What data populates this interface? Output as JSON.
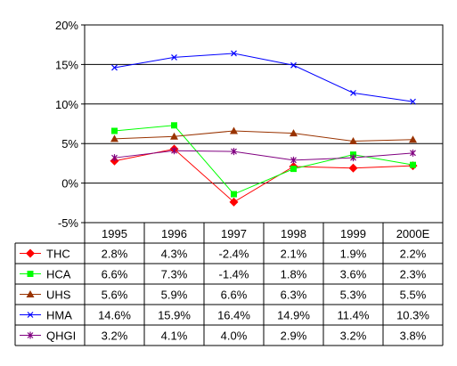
{
  "chart_data": {
    "type": "line",
    "categories": [
      "1995",
      "1996",
      "1997",
      "1998",
      "1999",
      "2000E"
    ],
    "ylim": [
      -5,
      20
    ],
    "yticks": [
      -5,
      0,
      5,
      10,
      15,
      20
    ],
    "ytick_labels": [
      "-5%",
      "0%",
      "5%",
      "10%",
      "15%",
      "20%"
    ],
    "grid": true,
    "legend": "data-table-below",
    "series": [
      {
        "name": "THC",
        "color": "#ff0000",
        "marker": "diamond",
        "values": [
          2.8,
          4.3,
          -2.4,
          2.1,
          1.9,
          2.2
        ],
        "labels": [
          "2.8%",
          "4.3%",
          "-2.4%",
          "2.1%",
          "1.9%",
          "2.2%"
        ]
      },
      {
        "name": "HCA",
        "color": "#00ff00",
        "marker": "square",
        "values": [
          6.6,
          7.3,
          -1.4,
          1.8,
          3.6,
          2.3
        ],
        "labels": [
          "6.6%",
          "7.3%",
          "-1.4%",
          "1.8%",
          "3.6%",
          "2.3%"
        ]
      },
      {
        "name": "UHS",
        "color": "#993300",
        "marker": "triangle",
        "values": [
          5.6,
          5.9,
          6.6,
          6.3,
          5.3,
          5.5
        ],
        "labels": [
          "5.6%",
          "5.9%",
          "6.6%",
          "6.3%",
          "5.3%",
          "5.5%"
        ]
      },
      {
        "name": "HMA",
        "color": "#0000ff",
        "marker": "x",
        "values": [
          14.6,
          15.9,
          16.4,
          14.9,
          11.4,
          10.3
        ],
        "labels": [
          "14.6%",
          "15.9%",
          "16.4%",
          "14.9%",
          "11.4%",
          "10.3%"
        ]
      },
      {
        "name": "QHGI",
        "color": "#800080",
        "marker": "star",
        "values": [
          3.2,
          4.1,
          4.0,
          2.9,
          3.2,
          3.8
        ],
        "labels": [
          "3.2%",
          "4.1%",
          "4.0%",
          "2.9%",
          "3.2%",
          "3.8%"
        ]
      }
    ]
  }
}
